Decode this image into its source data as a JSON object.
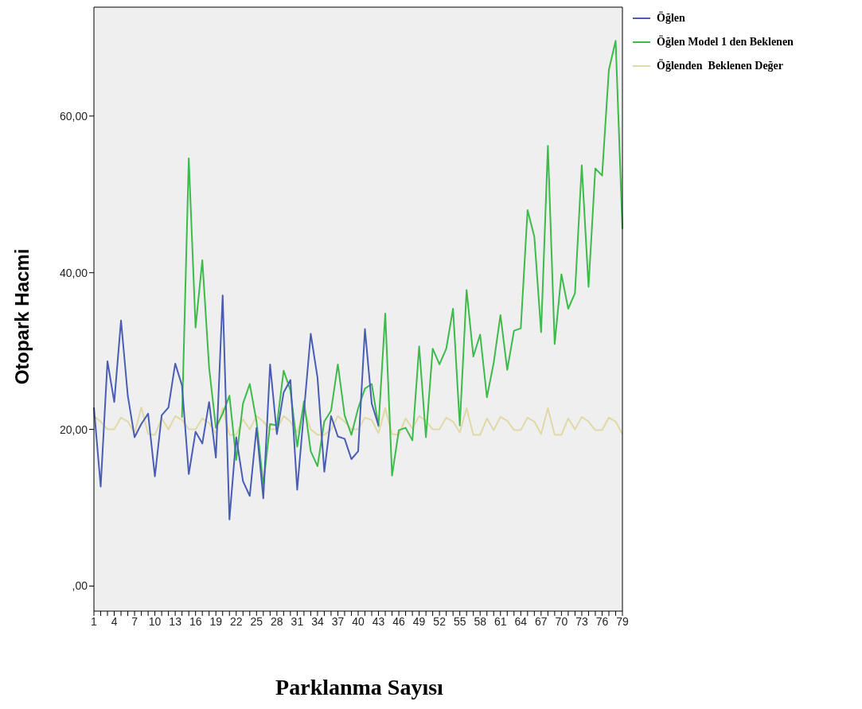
{
  "chart_data": {
    "type": "line",
    "xlabel": "Parklanma Sayısı",
    "ylabel": "Otopark Hacmi",
    "categories": [
      "1",
      null,
      null,
      "4",
      null,
      null,
      "7",
      null,
      null,
      "10",
      null,
      null,
      "13",
      null,
      null,
      "16",
      null,
      null,
      "19",
      null,
      null,
      "22",
      null,
      null,
      "25",
      null,
      null,
      "28",
      null,
      null,
      "31",
      null,
      null,
      "34",
      null,
      null,
      "37",
      null,
      null,
      "40",
      null,
      null,
      "43",
      null,
      null,
      "46",
      null,
      null,
      "49",
      null,
      null,
      "52",
      null,
      null,
      "55",
      null,
      null,
      "58",
      null,
      null,
      "61",
      null,
      null,
      "64",
      null,
      null,
      "67",
      null,
      null,
      "70",
      null,
      null,
      "73",
      null,
      null,
      "76",
      null,
      null,
      "79"
    ],
    "series": [
      {
        "name": "Öğlen",
        "color": "#4a5db4",
        "values": [
          22.8,
          12.7,
          28.7,
          23.5,
          33.9,
          24.3,
          19.0,
          20.7,
          22.0,
          14.0,
          21.8,
          22.8,
          28.4,
          25.6,
          14.3,
          19.7,
          18.2,
          23.5,
          16.4,
          37.1,
          8.5,
          19.0,
          13.4,
          11.5,
          20.2,
          11.2,
          28.3,
          19.4,
          24.7,
          26.3,
          12.3,
          22.3,
          32.2,
          26.6,
          14.6,
          21.7,
          19.1,
          18.8,
          16.2,
          17.2,
          32.8,
          23.3,
          20.5,
          null,
          null,
          null,
          null,
          null,
          null,
          null,
          null,
          null,
          null,
          null,
          null,
          null,
          null,
          null,
          null,
          null,
          null,
          null,
          null,
          null,
          null,
          null,
          null,
          null,
          null,
          null,
          null,
          null,
          null,
          null,
          null,
          null,
          null,
          null,
          null
        ]
      },
      {
        "name": "Öğlen Model 1 den Beklenen",
        "color": "#3cbb4a",
        "values": [
          null,
          null,
          null,
          null,
          null,
          null,
          null,
          null,
          null,
          null,
          null,
          null,
          null,
          21.5,
          54.6,
          33.0,
          41.6,
          27.9,
          20.2,
          22.0,
          24.3,
          16.1,
          23.3,
          25.8,
          21.0,
          12.9,
          20.7,
          20.5,
          27.5,
          25.0,
          17.8,
          23.6,
          17.2,
          15.3,
          21.0,
          22.4,
          28.3,
          21.8,
          19.3,
          22.7,
          25.2,
          25.8,
          20.4,
          34.8,
          14.1,
          19.9,
          20.2,
          18.6,
          30.6,
          19.0,
          30.3,
          28.3,
          30.3,
          35.4,
          20.5,
          37.8,
          29.3,
          32.1,
          24.1,
          28.5,
          34.6,
          27.6,
          32.6,
          32.9,
          48.0,
          44.6,
          32.4,
          56.2,
          30.9,
          39.8,
          35.4,
          37.4,
          53.7,
          38.2,
          53.3,
          52.4,
          65.9,
          69.6,
          45.6
        ]
      },
      {
        "name": "Öğlenden  Beklenen Değer",
        "color": "#e0d9a6",
        "values": [
          21.7,
          21.0,
          20.0,
          20.0,
          21.5,
          21.0,
          19.5,
          22.8,
          19.4,
          19.3,
          21.4,
          20.0,
          21.7,
          21.2,
          20.0,
          20.0,
          21.4,
          20.8,
          19.5,
          22.7,
          19.3,
          19.3,
          21.3,
          20.0,
          21.7,
          21.0,
          20.0,
          20.0,
          21.7,
          21.0,
          19.6,
          22.6,
          20.0,
          19.3,
          19.3,
          20.0,
          21.7,
          21.0,
          20.0,
          20.0,
          21.5,
          21.2,
          19.5,
          22.7,
          19.4,
          19.3,
          21.4,
          20.1,
          21.7,
          21.1,
          20.0,
          20.0,
          21.5,
          21.0,
          19.6,
          22.7,
          19.3,
          19.3,
          21.4,
          19.9,
          21.6,
          21.1,
          19.9,
          19.9,
          21.5,
          21.0,
          19.4,
          22.7,
          19.3,
          19.3,
          21.4,
          20.0,
          21.6,
          21.0,
          19.9,
          19.9,
          21.5,
          21.0,
          19.4
        ]
      }
    ],
    "ylim": [
      -3.2,
      73.9
    ],
    "yticks": [
      {
        "value": 0,
        "label": ",00"
      },
      {
        "value": 20,
        "label": "20,00"
      },
      {
        "value": 40,
        "label": "40,00"
      },
      {
        "value": 60,
        "label": "60,00"
      }
    ],
    "legend": "top right",
    "grid": false,
    "marker": "none",
    "line_style": "solid"
  }
}
